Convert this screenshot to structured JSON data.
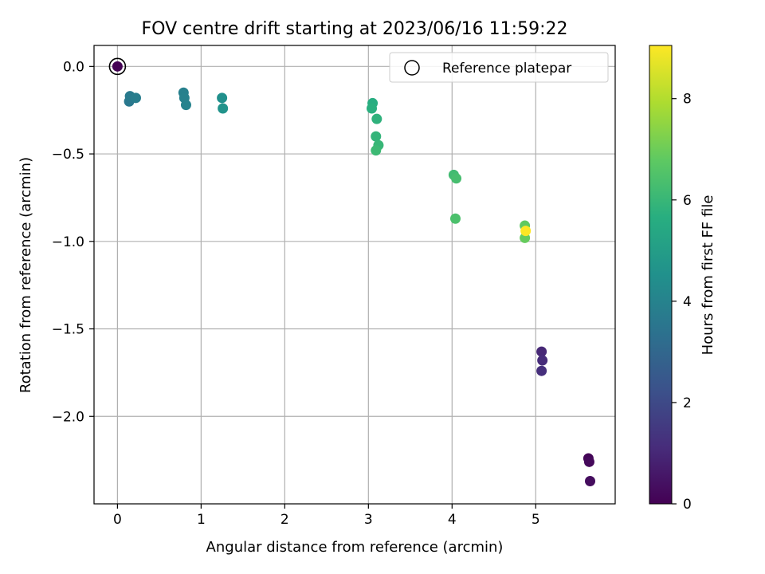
{
  "chart_data": {
    "type": "scatter",
    "title": "FOV centre drift starting at 2023/06/16 11:59:22",
    "xlabel": "Angular distance from reference (arcmin)",
    "ylabel": "Rotation from reference (arcmin)",
    "xlim": [
      -0.28,
      5.95
    ],
    "ylim": [
      -2.5,
      0.12
    ],
    "xticks": [
      0,
      1,
      2,
      3,
      4,
      5
    ],
    "yticks": [
      0.0,
      -0.5,
      -1.0,
      -1.5,
      -2.0
    ],
    "xtick_labels": [
      "0",
      "1",
      "2",
      "3",
      "4",
      "5"
    ],
    "ytick_labels": [
      "0.0",
      "−0.5",
      "−1.0",
      "−1.5",
      "−2.0"
    ],
    "grid": true,
    "colormap": "viridis",
    "colorbar": {
      "label": "Hours from first FF file",
      "range": [
        0,
        9.05
      ],
      "ticks": [
        0,
        2,
        4,
        6,
        8
      ],
      "tick_labels": [
        "0",
        "2",
        "4",
        "6",
        "8"
      ]
    },
    "reference": {
      "label": "Reference platepar",
      "x": 0.0,
      "y": 0.0
    },
    "legend": {
      "placement": "top-right",
      "entries": [
        "Reference platepar"
      ]
    },
    "points": [
      {
        "x": 0.0,
        "y": 0.0,
        "hours": 0.0
      },
      {
        "x": 5.63,
        "y": -2.24,
        "hours": 0.1
      },
      {
        "x": 5.64,
        "y": -2.26,
        "hours": 0.2
      },
      {
        "x": 5.65,
        "y": -2.37,
        "hours": 0.3
      },
      {
        "x": 5.07,
        "y": -1.63,
        "hours": 1.0
      },
      {
        "x": 5.08,
        "y": -1.68,
        "hours": 1.1
      },
      {
        "x": 5.07,
        "y": -1.74,
        "hours": 1.2
      },
      {
        "x": 0.14,
        "y": -0.2,
        "hours": 3.6
      },
      {
        "x": 0.15,
        "y": -0.17,
        "hours": 3.7
      },
      {
        "x": 0.22,
        "y": -0.18,
        "hours": 3.8
      },
      {
        "x": 0.79,
        "y": -0.15,
        "hours": 3.9
      },
      {
        "x": 0.8,
        "y": -0.18,
        "hours": 3.95
      },
      {
        "x": 0.82,
        "y": -0.22,
        "hours": 4.0
      },
      {
        "x": 1.25,
        "y": -0.18,
        "hours": 4.5
      },
      {
        "x": 1.26,
        "y": -0.24,
        "hours": 4.6
      },
      {
        "x": 3.05,
        "y": -0.21,
        "hours": 5.6
      },
      {
        "x": 3.04,
        "y": -0.24,
        "hours": 5.7
      },
      {
        "x": 3.1,
        "y": -0.3,
        "hours": 5.8
      },
      {
        "x": 3.09,
        "y": -0.4,
        "hours": 5.9
      },
      {
        "x": 3.12,
        "y": -0.45,
        "hours": 6.0
      },
      {
        "x": 3.09,
        "y": -0.48,
        "hours": 6.1
      },
      {
        "x": 4.02,
        "y": -0.62,
        "hours": 6.2
      },
      {
        "x": 4.05,
        "y": -0.64,
        "hours": 6.3
      },
      {
        "x": 4.04,
        "y": -0.87,
        "hours": 6.4
      },
      {
        "x": 4.87,
        "y": -0.91,
        "hours": 6.8
      },
      {
        "x": 4.87,
        "y": -0.98,
        "hours": 6.9
      },
      {
        "x": 4.88,
        "y": -0.94,
        "hours": 9.05
      }
    ]
  }
}
